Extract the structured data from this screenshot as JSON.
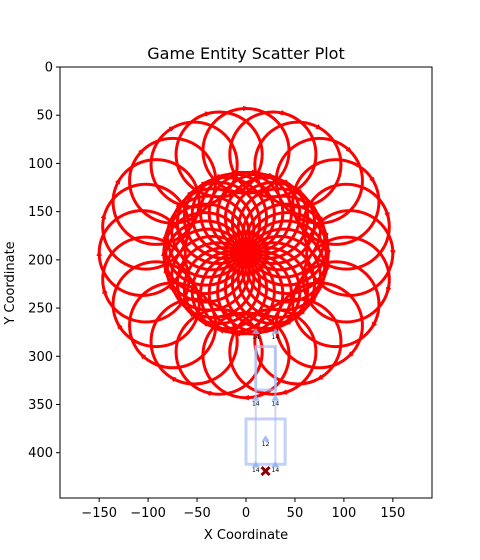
{
  "chart_data": {
    "type": "scatter",
    "title": "Game Entity Scatter Plot",
    "xlabel": "X Coordinate",
    "ylabel": "Y Coordinate",
    "xlim": [
      -190,
      190
    ],
    "ylim": [
      447,
      0
    ],
    "y_inverted": true,
    "grid": false,
    "x_ticks": [
      -150,
      -100,
      -50,
      0,
      50,
      100,
      150
    ],
    "y_ticks": [
      0,
      50,
      100,
      150,
      200,
      250,
      300,
      350,
      400
    ],
    "colors": {
      "spiral": "#ff0000",
      "guide": "#a9bdf5",
      "marker": "#8b0000",
      "arrow": "#8fb0f0"
    },
    "spiral_patterns": [
      {
        "name": "",
        "center": [
          0,
          193
        ],
        "ring_count": 24,
        "ring_radius": 44,
        "orbit_radius": 106
      },
      {
        "name": "",
        "center": [
          0,
          193
        ],
        "ring_count": 30,
        "ring_radius": 42,
        "orbit_radius": 42
      }
    ],
    "guide_boxes": [
      {
        "x": [
          10,
          30
        ],
        "y": [
          290,
          335
        ]
      },
      {
        "x": [
          0,
          40
        ],
        "y": [
          365,
          412
        ]
      }
    ],
    "entity_markers": [
      {
        "label": "14",
        "x": 10,
        "y": 278
      },
      {
        "label": "14",
        "x": 30,
        "y": 278
      },
      {
        "label": "14",
        "x": 10,
        "y": 347
      },
      {
        "label": "14",
        "x": 30,
        "y": 347
      },
      {
        "label": "12",
        "x": 20,
        "y": 389
      },
      {
        "label": "14",
        "x": 10,
        "y": 416
      },
      {
        "label": "14",
        "x": 30,
        "y": 416
      }
    ],
    "target_marker": {
      "x": 20,
      "y": 419
    }
  }
}
